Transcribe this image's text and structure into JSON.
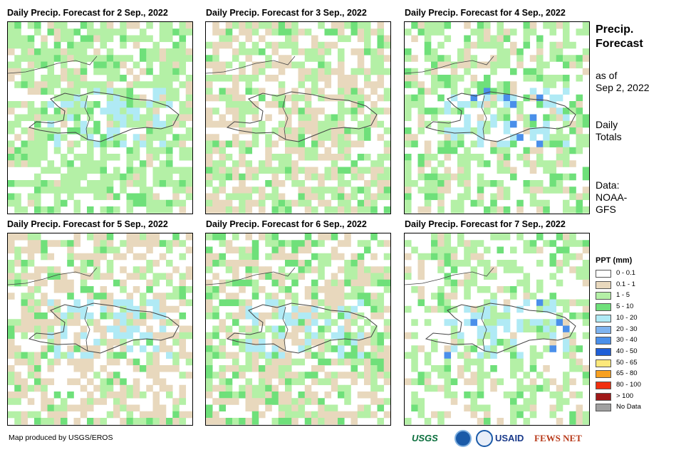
{
  "panels": [
    {
      "title": "Daily Precip. Forecast for 2 Sep., 2022"
    },
    {
      "title": "Daily Precip. Forecast for 3 Sep., 2022"
    },
    {
      "title": "Daily Precip. Forecast for 4 Sep., 2022"
    },
    {
      "title": "Daily Precip. Forecast for 5 Sep., 2022"
    },
    {
      "title": "Daily Precip. Forecast for 6 Sep., 2022"
    },
    {
      "title": "Daily Precip. Forecast for 7 Sep., 2022"
    }
  ],
  "side": {
    "title_line1": "Precip.",
    "title_line2": "Forecast",
    "asof_line1": "as of",
    "asof_line2": "Sep 2, 2022",
    "daily_line1": "Daily",
    "daily_line2": "Totals",
    "data_line1": "Data:",
    "data_line2": "NOAA-",
    "data_line3": "GFS"
  },
  "legend": {
    "title": "PPT (mm)",
    "items": [
      {
        "label": "0 - 0.1",
        "color": "#ffffff"
      },
      {
        "label": "0.1 - 1",
        "color": "#e8d8bd"
      },
      {
        "label": "1 - 5",
        "color": "#b4f0a6"
      },
      {
        "label": "5 - 10",
        "color": "#6fe07a"
      },
      {
        "label": "10 - 20",
        "color": "#b0eaf5"
      },
      {
        "label": "20 - 30",
        "color": "#7fb4f0"
      },
      {
        "label": "30 - 40",
        "color": "#4a8fea"
      },
      {
        "label": "40 - 50",
        "color": "#1f5fd8"
      },
      {
        "label": "50 - 65",
        "color": "#fde87a"
      },
      {
        "label": "65 - 80",
        "color": "#f8a020"
      },
      {
        "label": "80 - 100",
        "color": "#f03010"
      },
      {
        "label": "> 100",
        "color": "#a01818"
      },
      {
        "label": "No Data",
        "color": "#a0a0a0"
      }
    ]
  },
  "footer": {
    "credit": "Map produced by USGS/EROS",
    "logos": [
      "USGS",
      "NOAA",
      "USAID",
      "FEWS NET"
    ]
  }
}
